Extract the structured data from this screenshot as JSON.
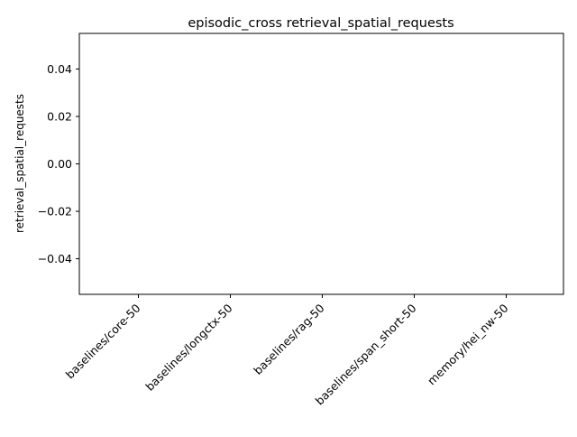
{
  "chart_data": {
    "type": "bar",
    "title": "episodic_cross retrieval_spatial_requests",
    "xlabel": "",
    "ylabel": "retrieval_spatial_requests",
    "categories": [
      "baselines/core-50",
      "baselines/longctx-50",
      "baselines/rag-50",
      "baselines/span_short-50",
      "memory/hei_nw-50"
    ],
    "values": [
      0,
      0,
      0,
      0,
      0
    ],
    "ylim": [
      -0.055,
      0.055
    ],
    "yticks": [
      -0.04,
      -0.02,
      0.0,
      0.02,
      0.04
    ],
    "ytick_labels": [
      "−0.04",
      "−0.02",
      "0.00",
      "0.02",
      "0.04"
    ],
    "grid": false,
    "legend": "none",
    "bar_color": "#1f77b4"
  }
}
